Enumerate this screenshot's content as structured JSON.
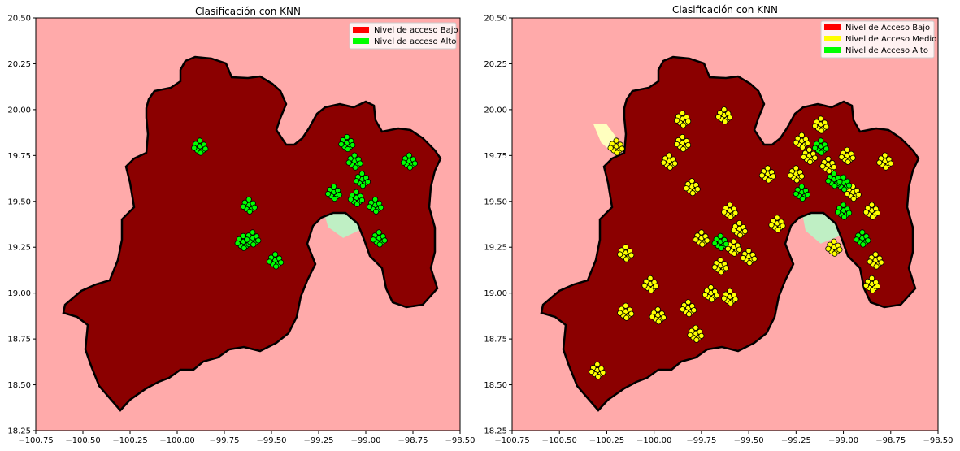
{
  "chart_data": [
    {
      "type": "scatter",
      "title": "Clasificación con KNN",
      "xlabel": "",
      "ylabel": "",
      "xlim": [
        -100.75,
        -98.5
      ],
      "ylim": [
        18.25,
        20.5
      ],
      "xticks": [
        "−100.75",
        "−100.50",
        "−100.25",
        "−100.00",
        "−99.75",
        "−99.50",
        "−99.25",
        "−99.00",
        "−98.75",
        "−98.50"
      ],
      "yticks": [
        "18.25",
        "18.50",
        "18.75",
        "19.00",
        "19.25",
        "19.50",
        "19.75",
        "20.00",
        "20.25",
        "20.50"
      ],
      "background_color": "#ffaaaa",
      "legend_position": "top-right",
      "legend": [
        {
          "label": "Nivel de acceso Bajo",
          "color": "#ff0000"
        },
        {
          "label": "Nivel de acceso Alto",
          "color": "#00ff00"
        }
      ],
      "regions": [
        {
          "color": "#bfefc4",
          "polygon": [
            [
              -99.23,
              19.47
            ],
            [
              -99.12,
              19.5
            ],
            [
              -99.05,
              19.45
            ],
            [
              -99.02,
              19.35
            ],
            [
              -99.12,
              19.3
            ],
            [
              -99.2,
              19.36
            ]
          ]
        }
      ],
      "clusters": [
        {
          "class": "Alto",
          "color": "#00ff00",
          "points": [
            [
              -99.88,
              19.8
            ],
            [
              -99.06,
              19.72
            ],
            [
              -99.02,
              19.62
            ],
            [
              -99.05,
              19.52
            ],
            [
              -98.95,
              19.48
            ],
            [
              -98.93,
              19.3
            ],
            [
              -99.17,
              19.55
            ],
            [
              -99.65,
              19.28
            ],
            [
              -99.6,
              19.3
            ],
            [
              -99.48,
              19.18
            ],
            [
              -99.62,
              19.48
            ],
            [
              -99.1,
              19.82
            ],
            [
              -98.77,
              19.72
            ]
          ]
        }
      ]
    },
    {
      "type": "scatter",
      "title": "Clasificación con KNN",
      "xlabel": "",
      "ylabel": "",
      "xlim": [
        -100.75,
        -98.5
      ],
      "ylim": [
        18.25,
        20.5
      ],
      "xticks": [
        "−100.75",
        "−100.50",
        "−100.25",
        "−100.00",
        "−99.75",
        "−99.50",
        "−99.25",
        "−99.00",
        "−98.75",
        "−98.50"
      ],
      "yticks": [
        "18.25",
        "18.50",
        "18.75",
        "19.00",
        "19.25",
        "19.50",
        "19.75",
        "20.00",
        "20.25",
        "20.50"
      ],
      "background_color": "#ffaaaa",
      "legend_position": "top-right",
      "legend": [
        {
          "label": "Nivel de Acceso Bajo",
          "color": "#ff0000"
        },
        {
          "label": "Nivel de Acceso Medio",
          "color": "#ffff00"
        },
        {
          "label": "Nivel de Acceso Alto",
          "color": "#00ff00"
        }
      ],
      "regions": [
        {
          "color": "#bfefc4",
          "polygon": [
            [
              -99.22,
              19.45
            ],
            [
              -99.1,
              19.5
            ],
            [
              -99.03,
              19.42
            ],
            [
              -99.0,
              19.32
            ],
            [
              -99.12,
              19.27
            ],
            [
              -99.2,
              19.34
            ]
          ]
        },
        {
          "color": "#ffffbf",
          "polygon": [
            [
              -100.32,
              19.92
            ],
            [
              -100.25,
              19.92
            ],
            [
              -100.2,
              19.85
            ],
            [
              -100.2,
              19.75
            ],
            [
              -100.28,
              19.82
            ]
          ]
        }
      ],
      "clusters": [
        {
          "class": "Medio",
          "color": "#ffff00",
          "points": [
            [
              -99.6,
              19.45
            ],
            [
              -99.55,
              19.35
            ],
            [
              -99.58,
              19.25
            ],
            [
              -99.5,
              19.2
            ],
            [
              -99.65,
              19.15
            ],
            [
              -99.75,
              19.3
            ],
            [
              -99.92,
              19.72
            ],
            [
              -99.85,
              19.82
            ],
            [
              -99.8,
              19.58
            ],
            [
              -99.7,
              19.0
            ],
            [
              -99.6,
              18.98
            ],
            [
              -99.82,
              18.92
            ],
            [
              -99.98,
              18.88
            ],
            [
              -100.15,
              18.9
            ],
            [
              -100.3,
              18.58
            ],
            [
              -100.02,
              19.05
            ],
            [
              -100.15,
              19.22
            ],
            [
              -100.2,
              19.8
            ],
            [
              -99.85,
              19.95
            ],
            [
              -99.63,
              19.97
            ],
            [
              -99.4,
              19.65
            ],
            [
              -99.25,
              19.65
            ],
            [
              -99.18,
              19.75
            ],
            [
              -99.08,
              19.7
            ],
            [
              -98.98,
              19.75
            ],
            [
              -98.95,
              19.55
            ],
            [
              -98.85,
              19.45
            ],
            [
              -98.78,
              19.72
            ],
            [
              -98.83,
              19.18
            ],
            [
              -98.85,
              19.05
            ],
            [
              -99.05,
              19.25
            ],
            [
              -99.35,
              19.38
            ],
            [
              -99.22,
              19.83
            ],
            [
              -99.12,
              19.92
            ],
            [
              -99.78,
              18.78
            ]
          ]
        },
        {
          "class": "Alto",
          "color": "#00ff00",
          "points": [
            [
              -99.65,
              19.28
            ],
            [
              -99.12,
              19.8
            ],
            [
              -99.22,
              19.55
            ],
            [
              -99.0,
              19.6
            ],
            [
              -99.0,
              19.45
            ],
            [
              -98.9,
              19.3
            ],
            [
              -99.05,
              19.62
            ]
          ]
        }
      ]
    }
  ]
}
